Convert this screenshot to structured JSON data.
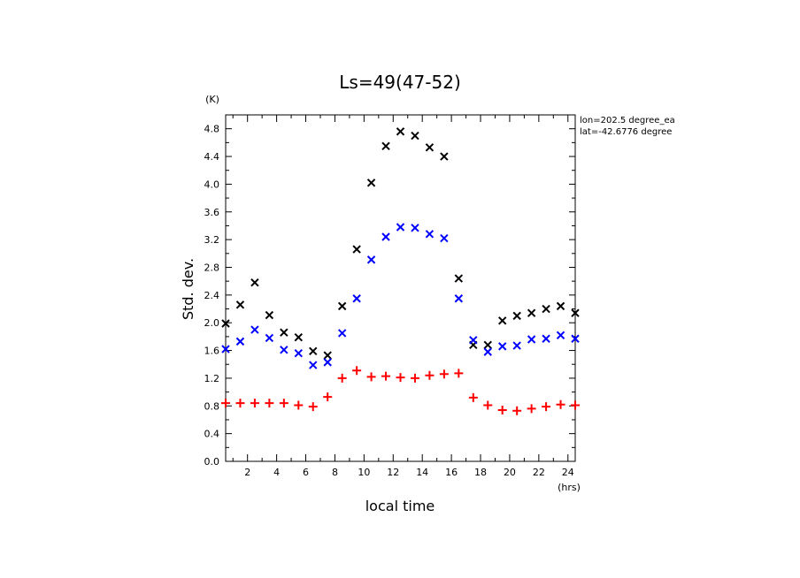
{
  "chart_data": {
    "type": "scatter",
    "title": "Ls=49(47-52)",
    "xlabel": "local time",
    "ylabel": "Std. dev.",
    "x_unit": "(hrs)",
    "y_unit": "(K)",
    "xlim": [
      0.5,
      24.5
    ],
    "ylim": [
      0.0,
      5.0
    ],
    "x_ticks": [
      2,
      4,
      6,
      8,
      10,
      12,
      14,
      16,
      18,
      20,
      22,
      24
    ],
    "y_ticks": [
      0.0,
      0.4,
      0.8,
      1.2,
      1.6,
      2.0,
      2.4,
      2.8,
      3.2,
      3.6,
      4.0,
      4.4,
      4.8
    ],
    "annotations": [
      "lon=202.5 degree_ea",
      "lat=-42.6776 degree"
    ],
    "grid": false,
    "series": [
      {
        "marker": "x",
        "color": "#000000",
        "x": [
          0.5,
          1.5,
          2.5,
          3.5,
          4.5,
          5.5,
          6.5,
          7.5,
          8.5,
          9.5,
          10.5,
          11.5,
          12.5,
          13.5,
          14.5,
          15.5,
          16.5,
          17.5,
          18.5,
          19.5,
          20.5,
          21.5,
          22.5,
          23.5,
          24.5
        ],
        "values": [
          1.99,
          2.26,
          2.58,
          2.11,
          1.86,
          1.79,
          1.59,
          1.53,
          2.24,
          3.06,
          4.02,
          4.55,
          4.76,
          4.7,
          4.53,
          4.4,
          2.64,
          1.68,
          1.68,
          2.03,
          2.1,
          2.14,
          2.2,
          2.24,
          2.14
        ]
      },
      {
        "marker": "x",
        "color": "#0000ff",
        "x": [
          0.5,
          1.5,
          2.5,
          3.5,
          4.5,
          5.5,
          6.5,
          7.5,
          8.5,
          9.5,
          10.5,
          11.5,
          12.5,
          13.5,
          14.5,
          15.5,
          16.5,
          17.5,
          18.5,
          19.5,
          20.5,
          21.5,
          22.5,
          23.5,
          24.5
        ],
        "values": [
          1.62,
          1.73,
          1.9,
          1.78,
          1.61,
          1.56,
          1.39,
          1.43,
          1.85,
          2.35,
          2.91,
          3.24,
          3.38,
          3.37,
          3.28,
          3.22,
          2.35,
          1.75,
          1.58,
          1.66,
          1.67,
          1.76,
          1.77,
          1.82,
          1.77
        ]
      },
      {
        "marker": "+",
        "color": "#ff0000",
        "x": [
          0.5,
          1.5,
          2.5,
          3.5,
          4.5,
          5.5,
          6.5,
          7.5,
          8.5,
          9.5,
          10.5,
          11.5,
          12.5,
          13.5,
          14.5,
          15.5,
          16.5,
          17.5,
          18.5,
          19.5,
          20.5,
          21.5,
          22.5,
          23.5,
          24.5
        ],
        "values": [
          0.84,
          0.84,
          0.84,
          0.84,
          0.84,
          0.81,
          0.79,
          0.93,
          1.2,
          1.31,
          1.22,
          1.23,
          1.21,
          1.2,
          1.24,
          1.26,
          1.27,
          0.92,
          0.81,
          0.74,
          0.73,
          0.76,
          0.79,
          0.82,
          0.81
        ]
      }
    ]
  }
}
